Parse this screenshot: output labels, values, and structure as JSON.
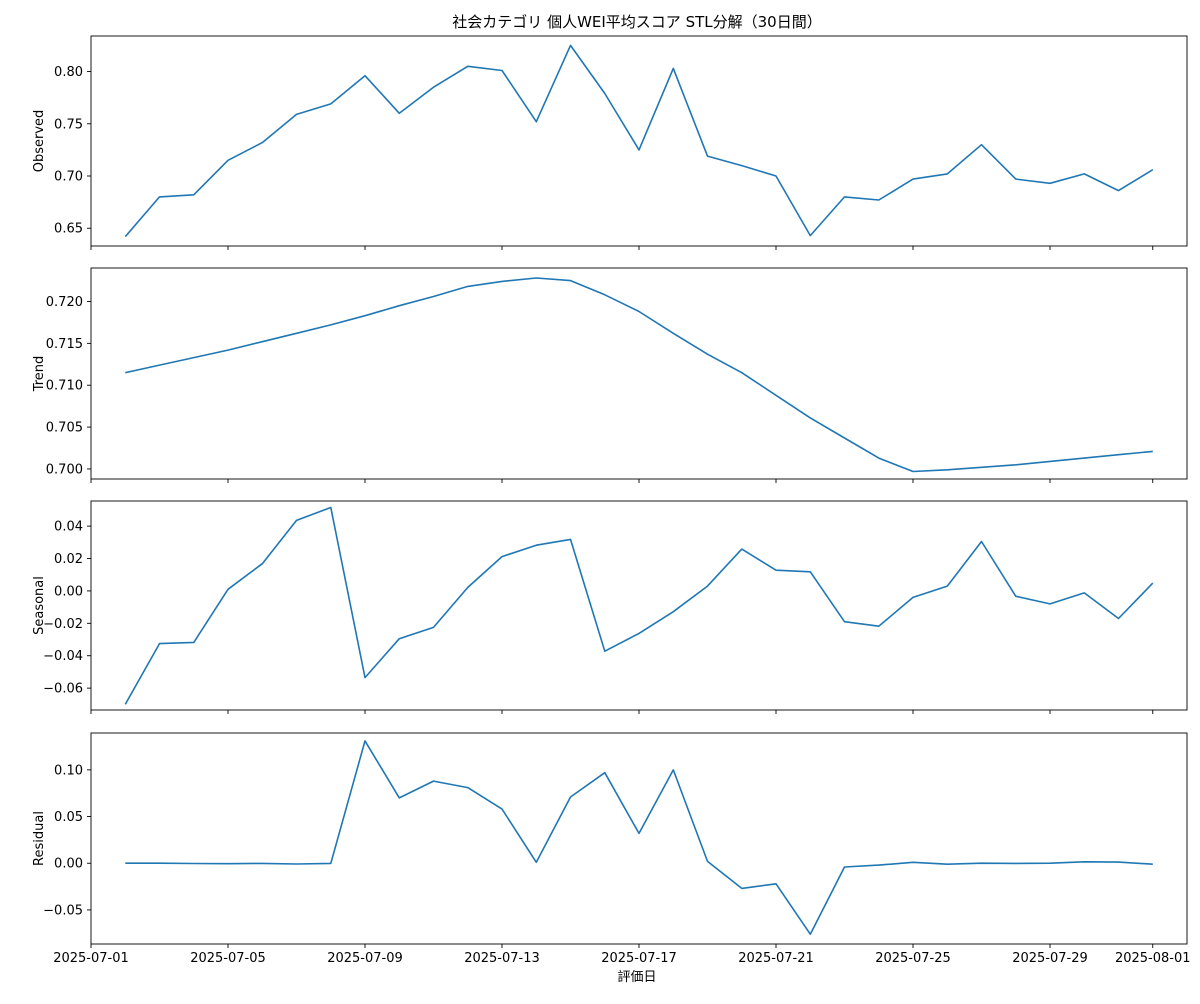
{
  "chart_data": {
    "type": "line",
    "title": "社会カテゴリ 個人WEI平均スコア STL分解（30日間）",
    "xlabel": "評価日",
    "line_color": "#1f77b4",
    "x": [
      "2025-07-02",
      "2025-07-03",
      "2025-07-04",
      "2025-07-05",
      "2025-07-06",
      "2025-07-07",
      "2025-07-08",
      "2025-07-09",
      "2025-07-10",
      "2025-07-11",
      "2025-07-12",
      "2025-07-13",
      "2025-07-14",
      "2025-07-15",
      "2025-07-16",
      "2025-07-17",
      "2025-07-18",
      "2025-07-19",
      "2025-07-20",
      "2025-07-21",
      "2025-07-22",
      "2025-07-23",
      "2025-07-24",
      "2025-07-25",
      "2025-07-26",
      "2025-07-27",
      "2025-07-28",
      "2025-07-29",
      "2025-07-30",
      "2025-07-31",
      "2025-08-01"
    ],
    "xlim": [
      "2025-07-01",
      "2025-08-02"
    ],
    "x_ticks": [
      "2025-07-01",
      "2025-07-05",
      "2025-07-09",
      "2025-07-13",
      "2025-07-17",
      "2025-07-21",
      "2025-07-25",
      "2025-07-29",
      "2025-08-01"
    ],
    "panels": [
      {
        "ylabel": "Observed",
        "ylim": [
          0.633,
          0.834
        ],
        "y_ticks": [
          "0.65",
          "0.70",
          "0.75",
          "0.80"
        ],
        "y_tick_values": [
          0.65,
          0.7,
          0.75,
          0.8
        ],
        "values": [
          0.642,
          0.68,
          0.682,
          0.715,
          0.732,
          0.759,
          0.769,
          0.796,
          0.76,
          0.785,
          0.805,
          0.801,
          0.752,
          0.825,
          0.779,
          0.725,
          0.803,
          0.719,
          0.71,
          0.7,
          0.643,
          0.68,
          0.677,
          0.697,
          0.702,
          0.73,
          0.697,
          0.693,
          0.702,
          0.686,
          0.706
        ]
      },
      {
        "ylabel": "Trend",
        "ylim": [
          0.6988,
          0.724
        ],
        "y_ticks": [
          "0.700",
          "0.705",
          "0.710",
          "0.715",
          "0.720"
        ],
        "y_tick_values": [
          0.7,
          0.705,
          0.71,
          0.715,
          0.72
        ],
        "values": [
          0.7115,
          0.7124,
          0.7133,
          0.7142,
          0.7152,
          0.7162,
          0.7172,
          0.7183,
          0.7195,
          0.7206,
          0.7218,
          0.7224,
          0.7228,
          0.7225,
          0.7208,
          0.7188,
          0.7162,
          0.7137,
          0.7115,
          0.7088,
          0.7061,
          0.7037,
          0.7013,
          0.6997,
          0.6999,
          0.7002,
          0.7005,
          0.7009,
          0.7013,
          0.7017,
          0.7021
        ]
      },
      {
        "ylabel": "Seasonal",
        "ylim": [
          -0.0735,
          0.0555
        ],
        "y_ticks": [
          "−0.06",
          "−0.04",
          "−0.02",
          "0.00",
          "0.02",
          "0.04"
        ],
        "y_tick_values": [
          -0.06,
          -0.04,
          -0.02,
          0.0,
          0.02,
          0.04
        ],
        "values": [
          -0.07,
          -0.0325,
          -0.0318,
          0.001,
          0.0168,
          0.0435,
          0.0515,
          -0.0535,
          -0.0295,
          -0.0225,
          0.0022,
          0.0212,
          0.0282,
          0.0318,
          -0.0372,
          -0.0262,
          -0.0128,
          0.003,
          0.0258,
          0.0128,
          0.0118,
          -0.019,
          -0.0218,
          -0.004,
          0.003,
          0.0305,
          -0.0033,
          -0.008,
          -0.0012,
          -0.017,
          0.0048
        ]
      },
      {
        "ylabel": "Residual",
        "ylim": [
          -0.0865,
          0.1395
        ],
        "y_ticks": [
          "−0.05",
          "0.00",
          "0.05",
          "0.10"
        ],
        "y_tick_values": [
          -0.05,
          0.0,
          0.05,
          0.1
        ],
        "values": [
          0.0,
          0.0,
          -0.0003,
          -0.0005,
          -0.0002,
          -0.0008,
          -0.0002,
          0.131,
          0.07,
          0.088,
          0.081,
          0.058,
          0.001,
          0.071,
          0.097,
          0.032,
          0.1,
          0.002,
          -0.027,
          -0.022,
          -0.076,
          -0.004,
          -0.002,
          0.001,
          -0.001,
          0.0,
          -0.0002,
          0.0,
          0.0015,
          0.0012,
          -0.001
        ]
      }
    ]
  }
}
